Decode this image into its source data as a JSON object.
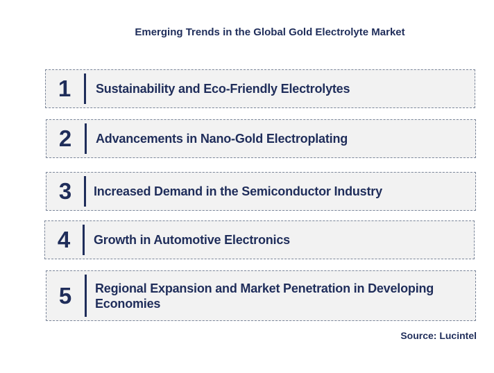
{
  "title": "Emerging Trends in the Global Gold Electrolyte Market",
  "trends": [
    {
      "number": "1",
      "label": "Sustainability and Eco-Friendly Electrolytes"
    },
    {
      "number": "2",
      "label": "Advancements in Nano-Gold Electroplating"
    },
    {
      "number": "3",
      "label": "Increased Demand in the Semiconductor Industry"
    },
    {
      "number": "4",
      "label": "Growth in Automotive Electronics"
    },
    {
      "number": "5",
      "label": "Regional Expansion and Market Penetration in Developing Economies"
    }
  ],
  "source": "Source: Lucintel",
  "colors": {
    "text": "#1f2d5a",
    "box_background": "#f2f2f2",
    "box_border": "#7a8599"
  }
}
